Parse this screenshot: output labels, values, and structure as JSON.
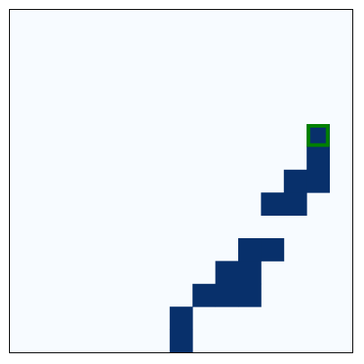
{
  "grid": {
    "rows": 15,
    "cols": 15,
    "background_color": "#f7fbff",
    "filled_color": "#08306b",
    "border_color": "#000000",
    "filled_cells": [
      [
        5,
        13
      ],
      [
        6,
        13
      ],
      [
        7,
        12
      ],
      [
        7,
        13
      ],
      [
        8,
        11
      ],
      [
        8,
        12
      ],
      [
        10,
        10
      ],
      [
        10,
        11
      ],
      [
        11,
        9
      ],
      [
        11,
        10
      ],
      [
        12,
        8
      ],
      [
        12,
        9
      ],
      [
        12,
        10
      ],
      [
        13,
        7
      ],
      [
        14,
        7
      ]
    ],
    "highlight": {
      "row": 5,
      "col": 13,
      "color": "#008000"
    }
  }
}
